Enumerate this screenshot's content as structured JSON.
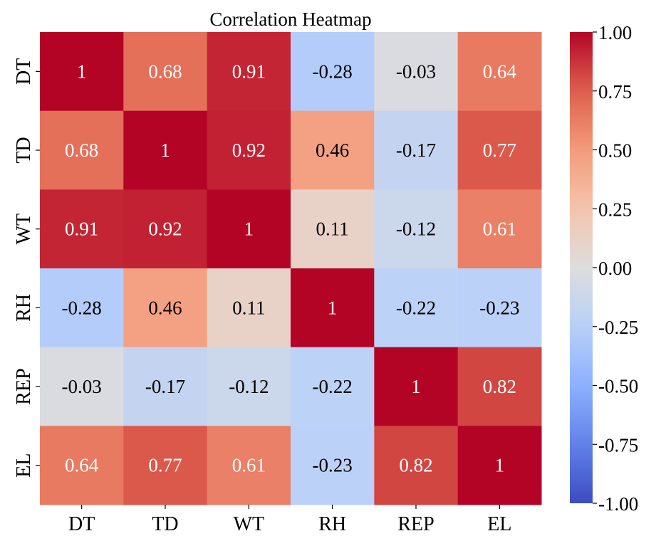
{
  "chart_data": {
    "type": "heatmap",
    "title": "Correlation Heatmap",
    "xlabel": "",
    "ylabel": "",
    "x_labels": [
      "DT",
      "TD",
      "WT",
      "RH",
      "REP",
      "EL"
    ],
    "y_labels": [
      "DT",
      "TD",
      "WT",
      "RH",
      "REP",
      "EL"
    ],
    "values": [
      [
        1,
        0.68,
        0.91,
        -0.28,
        -0.03,
        0.64
      ],
      [
        0.68,
        1,
        0.92,
        0.46,
        -0.17,
        0.77
      ],
      [
        0.91,
        0.92,
        1,
        0.11,
        -0.12,
        0.61
      ],
      [
        -0.28,
        0.46,
        0.11,
        1,
        -0.22,
        -0.23
      ],
      [
        -0.03,
        -0.17,
        -0.12,
        -0.22,
        1,
        0.82
      ],
      [
        0.64,
        0.77,
        0.61,
        -0.23,
        0.82,
        1
      ]
    ],
    "annotation_labels": [
      [
        "1",
        "0.68",
        "0.91",
        "-0.28",
        "-0.03",
        "0.64"
      ],
      [
        "0.68",
        "1",
        "0.92",
        "0.46",
        "-0.17",
        "0.77"
      ],
      [
        "0.91",
        "0.92",
        "1",
        "0.11",
        "-0.12",
        "0.61"
      ],
      [
        "-0.28",
        "0.46",
        "0.11",
        "1",
        "-0.22",
        "-0.23"
      ],
      [
        "-0.03",
        "-0.17",
        "-0.12",
        "-0.22",
        "1",
        "0.82"
      ],
      [
        "0.64",
        "0.77",
        "0.61",
        "-0.23",
        "0.82",
        "1"
      ]
    ],
    "colormap": "coolwarm",
    "vmin": -1.0,
    "vmax": 1.0,
    "colorbar": {
      "ticks": [
        1.0,
        0.75,
        0.5,
        0.25,
        0.0,
        -0.25,
        -0.5,
        -0.75,
        -1.0
      ],
      "tick_labels": [
        "1.00",
        "0.75",
        "0.50",
        "0.25",
        "0.00",
        "-0.25",
        "-0.50",
        "-0.75",
        "-1.00"
      ],
      "placement": "right"
    },
    "grid": false
  }
}
